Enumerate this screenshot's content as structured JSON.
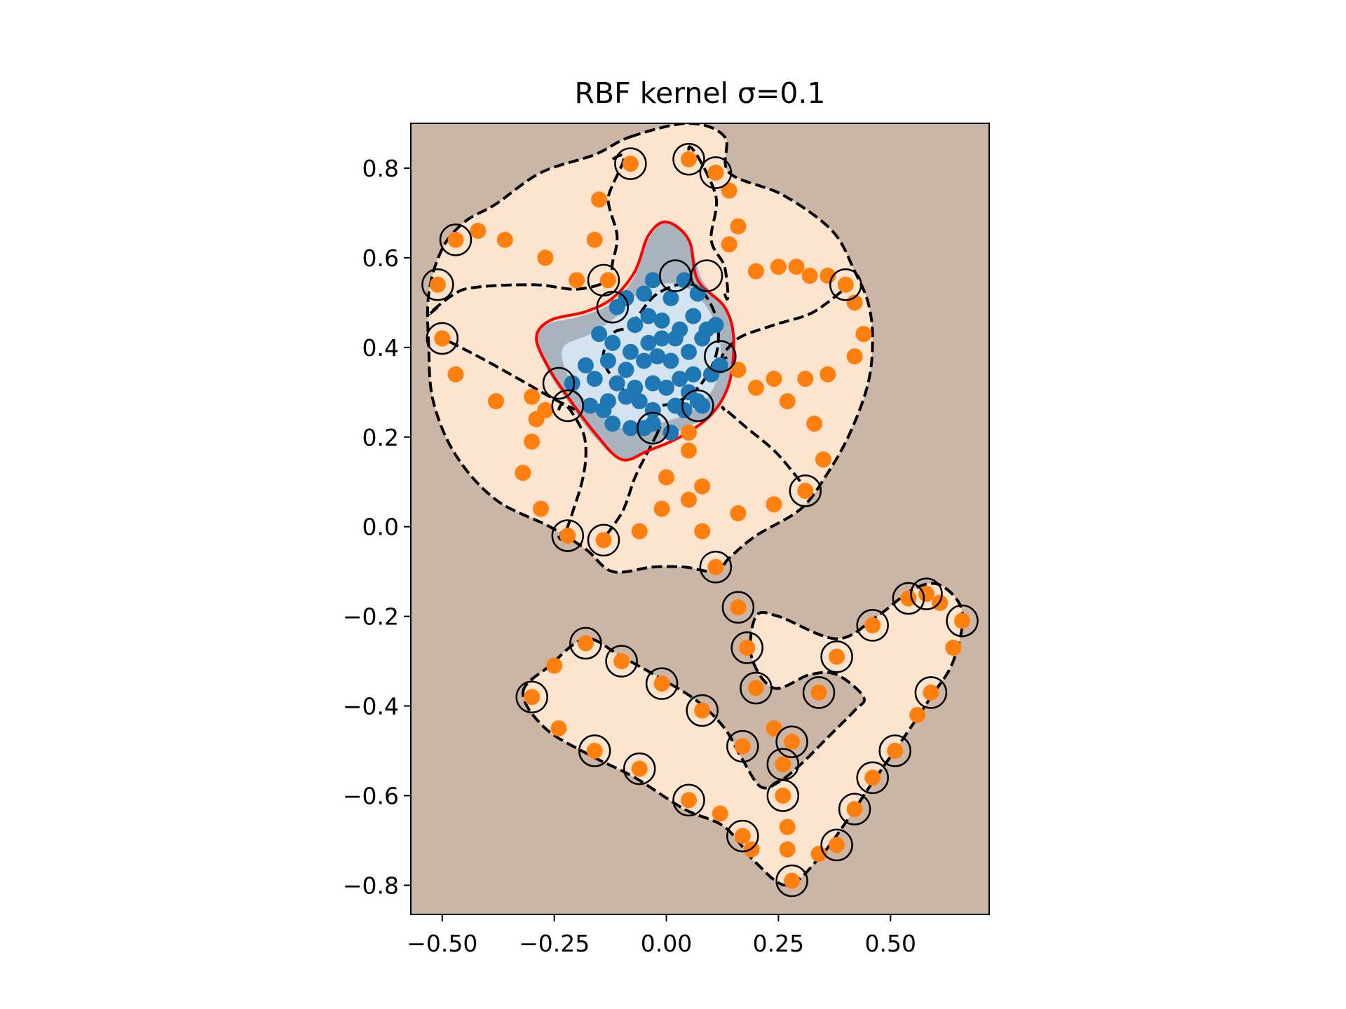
{
  "chart_data": {
    "type": "scatter",
    "title": "RBF kernel σ=0.1",
    "xlabel": "",
    "ylabel": "",
    "xlim": [
      -0.57,
      0.72
    ],
    "ylim": [
      -0.865,
      0.9
    ],
    "grid": false,
    "legend": "none",
    "xticks": [
      -0.5,
      -0.25,
      0.0,
      0.25,
      0.5
    ],
    "xtick_labels": [
      "−0.50",
      "−0.25",
      "0.00",
      "0.25",
      "0.50"
    ],
    "yticks": [
      0.8,
      0.6,
      0.4,
      0.2,
      0.0,
      -0.2,
      -0.4,
      -0.6,
      -0.8
    ],
    "ytick_labels": [
      "0.8",
      "0.6",
      "0.4",
      "0.2",
      "0.0",
      "−0.2",
      "−0.4",
      "−0.6",
      "−0.8"
    ],
    "colors": {
      "background": "#cbb6a5",
      "outer_region": "#fde4cf",
      "inner_region": "#a8b3be",
      "inner_core": "#d3e3f0",
      "class_orange": "#ff7f0e",
      "class_blue": "#1f77b4",
      "boundary": "#ff0000",
      "margin": "#000000",
      "support_vector_ring": "#000000"
    },
    "series": [
      {
        "values": [
          [
            -0.08,
            0.81
          ],
          [
            0.05,
            0.82
          ],
          [
            0.11,
            0.79
          ],
          [
            0.14,
            0.75
          ],
          [
            -0.15,
            0.73
          ],
          [
            0.16,
            0.67
          ],
          [
            -0.47,
            0.64
          ],
          [
            -0.42,
            0.66
          ],
          [
            -0.36,
            0.64
          ],
          [
            0.14,
            0.63
          ],
          [
            -0.16,
            0.64
          ],
          [
            -0.27,
            0.6
          ],
          [
            -0.2,
            0.55
          ],
          [
            -0.13,
            0.55
          ],
          [
            -0.51,
            0.54
          ],
          [
            0.2,
            0.57
          ],
          [
            0.25,
            0.58
          ],
          [
            0.29,
            0.58
          ],
          [
            0.32,
            0.56
          ],
          [
            0.36,
            0.56
          ],
          [
            0.4,
            0.54
          ],
          [
            0.42,
            0.5
          ],
          [
            0.44,
            0.43
          ],
          [
            -0.5,
            0.42
          ],
          [
            0.42,
            0.38
          ],
          [
            0.16,
            0.35
          ],
          [
            0.2,
            0.31
          ],
          [
            0.24,
            0.33
          ],
          [
            0.31,
            0.33
          ],
          [
            0.36,
            0.34
          ],
          [
            -0.47,
            0.34
          ],
          [
            -0.38,
            0.28
          ],
          [
            -0.3,
            0.29
          ],
          [
            0.27,
            0.28
          ],
          [
            -0.27,
            0.26
          ],
          [
            0.33,
            0.23
          ],
          [
            -0.29,
            0.24
          ],
          [
            -0.3,
            0.19
          ],
          [
            0.35,
            0.15
          ],
          [
            0.05,
            0.17
          ],
          [
            0.05,
            0.21
          ],
          [
            -0.32,
            0.12
          ],
          [
            0.0,
            0.11
          ],
          [
            0.08,
            0.09
          ],
          [
            -0.28,
            0.04
          ],
          [
            -0.01,
            0.04
          ],
          [
            0.05,
            0.06
          ],
          [
            0.16,
            0.03
          ],
          [
            0.24,
            0.05
          ],
          [
            0.31,
            0.08
          ],
          [
            -0.22,
            -0.02
          ],
          [
            -0.14,
            -0.03
          ],
          [
            -0.06,
            -0.01
          ],
          [
            0.08,
            -0.01
          ],
          [
            0.11,
            -0.09
          ],
          [
            0.16,
            -0.18
          ],
          [
            0.18,
            -0.27
          ],
          [
            0.2,
            -0.36
          ],
          [
            0.34,
            -0.37
          ],
          [
            0.38,
            -0.29
          ],
          [
            0.46,
            -0.22
          ],
          [
            0.54,
            -0.16
          ],
          [
            0.58,
            -0.15
          ],
          [
            0.61,
            -0.17
          ],
          [
            0.66,
            -0.21
          ],
          [
            0.64,
            -0.27
          ],
          [
            0.59,
            -0.37
          ],
          [
            0.56,
            -0.42
          ],
          [
            0.51,
            -0.5
          ],
          [
            0.46,
            -0.56
          ],
          [
            0.42,
            -0.63
          ],
          [
            0.38,
            -0.71
          ],
          [
            0.34,
            -0.73
          ],
          [
            0.28,
            -0.79
          ],
          [
            0.27,
            -0.72
          ],
          [
            0.27,
            -0.67
          ],
          [
            0.26,
            -0.6
          ],
          [
            0.26,
            -0.53
          ],
          [
            0.24,
            -0.45
          ],
          [
            0.28,
            -0.48
          ],
          [
            0.17,
            -0.49
          ],
          [
            0.08,
            -0.41
          ],
          [
            -0.01,
            -0.35
          ],
          [
            -0.1,
            -0.3
          ],
          [
            -0.18,
            -0.26
          ],
          [
            -0.25,
            -0.31
          ],
          [
            -0.3,
            -0.38
          ],
          [
            -0.24,
            -0.45
          ],
          [
            -0.16,
            -0.5
          ],
          [
            -0.06,
            -0.54
          ],
          [
            0.05,
            -0.61
          ],
          [
            0.12,
            -0.64
          ],
          [
            0.17,
            -0.69
          ],
          [
            0.19,
            -0.72
          ]
        ]
      },
      {
        "values": [
          [
            -0.11,
            0.49
          ],
          [
            -0.09,
            0.51
          ],
          [
            -0.05,
            0.52
          ],
          [
            -0.03,
            0.55
          ],
          [
            0.01,
            0.51
          ],
          [
            0.04,
            0.55
          ],
          [
            0.07,
            0.52
          ],
          [
            -0.07,
            0.45
          ],
          [
            -0.04,
            0.47
          ],
          [
            -0.01,
            0.46
          ],
          [
            0.03,
            0.44
          ],
          [
            0.06,
            0.47
          ],
          [
            0.09,
            0.44
          ],
          [
            0.11,
            0.45
          ],
          [
            -0.15,
            0.43
          ],
          [
            -0.12,
            0.41
          ],
          [
            -0.08,
            0.39
          ],
          [
            -0.04,
            0.41
          ],
          [
            -0.01,
            0.42
          ],
          [
            0.02,
            0.42
          ],
          [
            0.05,
            0.39
          ],
          [
            0.08,
            0.42
          ],
          [
            -0.18,
            0.36
          ],
          [
            -0.13,
            0.37
          ],
          [
            -0.09,
            0.35
          ],
          [
            -0.05,
            0.37
          ],
          [
            -0.02,
            0.38
          ],
          [
            0.01,
            0.37
          ],
          [
            0.06,
            0.34
          ],
          [
            0.1,
            0.34
          ],
          [
            0.12,
            0.36
          ],
          [
            -0.21,
            0.32
          ],
          [
            -0.16,
            0.33
          ],
          [
            -0.11,
            0.32
          ],
          [
            -0.07,
            0.31
          ],
          [
            -0.03,
            0.32
          ],
          [
            0.0,
            0.31
          ],
          [
            0.03,
            0.33
          ],
          [
            0.05,
            0.3
          ],
          [
            -0.17,
            0.27
          ],
          [
            -0.13,
            0.28
          ],
          [
            -0.09,
            0.29
          ],
          [
            -0.06,
            0.28
          ],
          [
            -0.03,
            0.26
          ],
          [
            0.02,
            0.27
          ],
          [
            0.04,
            0.26
          ],
          [
            0.08,
            0.27
          ],
          [
            -0.12,
            0.23
          ],
          [
            -0.08,
            0.22
          ],
          [
            -0.05,
            0.22
          ],
          [
            -0.03,
            0.23
          ],
          [
            0.01,
            0.21
          ],
          [
            0.07,
            0.28
          ],
          [
            -0.14,
            0.26
          ]
        ]
      }
    ],
    "support_vectors": [
      [
        -0.08,
        0.81
      ],
      [
        0.05,
        0.82
      ],
      [
        0.11,
        0.79
      ],
      [
        -0.47,
        0.64
      ],
      [
        -0.51,
        0.54
      ],
      [
        -0.5,
        0.42
      ],
      [
        0.4,
        0.54
      ],
      [
        0.31,
        0.08
      ],
      [
        -0.22,
        -0.02
      ],
      [
        -0.14,
        -0.03
      ],
      [
        0.11,
        -0.09
      ],
      [
        0.16,
        -0.18
      ],
      [
        0.18,
        -0.27
      ],
      [
        0.2,
        -0.36
      ],
      [
        0.34,
        -0.37
      ],
      [
        0.38,
        -0.29
      ],
      [
        0.46,
        -0.22
      ],
      [
        0.54,
        -0.16
      ],
      [
        0.58,
        -0.15
      ],
      [
        0.66,
        -0.21
      ],
      [
        0.59,
        -0.37
      ],
      [
        0.51,
        -0.5
      ],
      [
        0.46,
        -0.56
      ],
      [
        0.42,
        -0.63
      ],
      [
        0.38,
        -0.71
      ],
      [
        0.28,
        -0.79
      ],
      [
        0.26,
        -0.6
      ],
      [
        0.26,
        -0.53
      ],
      [
        0.28,
        -0.48
      ],
      [
        0.17,
        -0.49
      ],
      [
        0.08,
        -0.41
      ],
      [
        -0.01,
        -0.35
      ],
      [
        -0.1,
        -0.3
      ],
      [
        -0.18,
        -0.26
      ],
      [
        -0.3,
        -0.38
      ],
      [
        -0.16,
        -0.5
      ],
      [
        -0.06,
        -0.54
      ],
      [
        0.05,
        -0.61
      ],
      [
        0.17,
        -0.69
      ],
      [
        -0.14,
        0.55
      ],
      [
        0.09,
        0.56
      ],
      [
        0.02,
        0.56
      ],
      [
        -0.12,
        0.49
      ],
      [
        0.12,
        0.38
      ],
      [
        -0.24,
        0.32
      ],
      [
        0.07,
        0.27
      ],
      [
        -0.03,
        0.22
      ],
      [
        -0.22,
        0.27
      ]
    ]
  }
}
